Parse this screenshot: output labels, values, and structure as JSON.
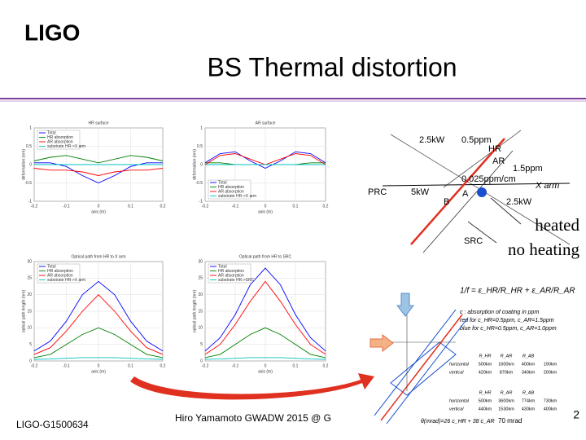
{
  "chart_data": [
    {
      "type": "line",
      "title": "HR surface",
      "xlabel": "axis (m)",
      "ylabel": "deformation (nm)",
      "x": [
        -0.2,
        -0.15,
        -0.1,
        -0.05,
        0,
        0.05,
        0.1,
        0.15,
        0.2
      ],
      "xlim": [
        -0.2,
        0.2
      ],
      "xticks": [
        -0.2,
        -0.1,
        0,
        0.1,
        0.2
      ],
      "ylim": [
        -1,
        1
      ],
      "yticks": [
        -1,
        -0.5,
        0,
        0.5,
        1
      ],
      "grid": true,
      "legend": "top-left",
      "series": [
        {
          "name": "Total",
          "color": "#0000ff",
          "values": [
            0.05,
            0.05,
            -0.05,
            -0.3,
            -0.5,
            -0.3,
            -0.05,
            0.05,
            0.05
          ]
        },
        {
          "name": "HR absorption",
          "color": "#008000",
          "values": [
            0.1,
            0.2,
            0.25,
            0.15,
            0.05,
            0.15,
            0.25,
            0.2,
            0.1
          ]
        },
        {
          "name": "AR absorption",
          "color": "#ff0000",
          "values": [
            -0.1,
            -0.15,
            -0.15,
            -0.2,
            -0.3,
            -0.2,
            -0.15,
            -0.15,
            -0.1
          ]
        },
        {
          "name": "substrate HR->X arm",
          "color": "#00bfbf",
          "values": [
            0,
            0,
            0,
            0,
            0,
            0,
            0,
            0,
            0
          ]
        }
      ]
    },
    {
      "type": "line",
      "title": "AR surface",
      "xlabel": "axis (m)",
      "ylabel": "deformation (nm)",
      "x": [
        -0.2,
        -0.15,
        -0.1,
        -0.05,
        0,
        0.05,
        0.1,
        0.15,
        0.2
      ],
      "xlim": [
        -0.2,
        0.2
      ],
      "xticks": [
        -0.2,
        -0.1,
        0,
        0.1,
        0.2
      ],
      "ylim": [
        -1,
        1
      ],
      "yticks": [
        -1,
        -0.5,
        0,
        0.5,
        1
      ],
      "grid": true,
      "legend": "bottom-left",
      "series": [
        {
          "name": "Total",
          "color": "#0000ff",
          "values": [
            0.05,
            0.3,
            0.35,
            0.1,
            -0.1,
            0.1,
            0.35,
            0.3,
            0.05
          ]
        },
        {
          "name": "HR absorption",
          "color": "#008000",
          "values": [
            0.05,
            0.05,
            0,
            0,
            0,
            0,
            0,
            0.05,
            0.05
          ]
        },
        {
          "name": "AR absorption",
          "color": "#ff0000",
          "values": [
            0,
            0.25,
            0.3,
            0.15,
            0,
            0.15,
            0.3,
            0.25,
            0
          ]
        },
        {
          "name": "substrate HR->X arm",
          "color": "#00bfbf",
          "values": [
            0,
            0,
            0,
            0,
            0,
            0,
            0,
            0,
            0
          ]
        }
      ]
    },
    {
      "type": "line",
      "title": "Optical path from HR to X arm",
      "xlabel": "axis (m)",
      "ylabel": "optical path length (nm)",
      "x": [
        -0.2,
        -0.15,
        -0.1,
        -0.05,
        0,
        0.05,
        0.1,
        0.15,
        0.2
      ],
      "xlim": [
        -0.2,
        0.2
      ],
      "xticks": [
        -0.2,
        -0.1,
        0,
        0.1,
        0.2
      ],
      "ylim": [
        0,
        30
      ],
      "yticks": [
        0,
        5,
        10,
        15,
        20,
        25,
        30
      ],
      "grid": true,
      "legend": "top-left",
      "series": [
        {
          "name": "Total",
          "color": "#0000ff",
          "values": [
            3,
            6,
            12,
            20,
            24,
            20,
            12,
            6,
            3
          ]
        },
        {
          "name": "HR absorption",
          "color": "#008000",
          "values": [
            1,
            2,
            5,
            8,
            10,
            8,
            5,
            2,
            1
          ]
        },
        {
          "name": "AR absorption",
          "color": "#ff0000",
          "values": [
            2,
            4,
            9,
            15,
            20,
            15,
            9,
            4,
            2
          ]
        },
        {
          "name": "substrate HR->X arm",
          "color": "#00bfbf",
          "values": [
            0.5,
            0.6,
            0.8,
            1,
            1,
            1,
            0.8,
            0.6,
            0.5
          ]
        }
      ]
    },
    {
      "type": "line",
      "title": "Optical path from HR to SRC",
      "xlabel": "axis (m)",
      "ylabel": "optical path length (nm)",
      "x": [
        -0.2,
        -0.15,
        -0.1,
        -0.05,
        0,
        0.05,
        0.1,
        0.15,
        0.2
      ],
      "xlim": [
        -0.2,
        0.2
      ],
      "xticks": [
        -0.2,
        -0.1,
        0,
        0.1,
        0.2
      ],
      "ylim": [
        0,
        30
      ],
      "yticks": [
        0,
        5,
        10,
        15,
        20,
        25,
        30
      ],
      "grid": true,
      "legend": "top-left",
      "series": [
        {
          "name": "Total",
          "color": "#0000ff",
          "values": [
            3,
            7,
            14,
            23,
            28,
            23,
            14,
            7,
            3
          ]
        },
        {
          "name": "HR absorption",
          "color": "#008000",
          "values": [
            1,
            2,
            5,
            8,
            10,
            8,
            5,
            2,
            1
          ]
        },
        {
          "name": "AR absorption",
          "color": "#ff0000",
          "values": [
            2,
            5,
            11,
            18,
            24,
            18,
            11,
            5,
            2
          ]
        },
        {
          "name": "substrate HR->SRC",
          "color": "#00bfbf",
          "values": [
            0.5,
            0.6,
            0.8,
            1,
            1,
            1,
            0.8,
            0.6,
            0.5
          ]
        }
      ]
    }
  ],
  "slide": {
    "logo": "LIGO",
    "title": "BS Thermal distortion",
    "diagram": {
      "power_in": "2.5kW",
      "c_hr": "0.5ppm",
      "hr": "HR",
      "ar": "AR",
      "c_ar": "1.5ppm",
      "c_sub": "0.025ppm/cm",
      "xarm": "X arm",
      "prc": "PRC",
      "power_prc": "5kW",
      "b": "B",
      "a": "A",
      "power_out": "2.5kW",
      "src": "SRC"
    },
    "heated": "heated",
    "no_heating": "no heating",
    "formula": "1/f = ε_HR/R_HR + ε_AR/R_AR",
    "notes": [
      "c : absorption of coating in ppm",
      "red for c_HR=0.5ppm, c_AR=1.5ppm",
      "blue for c_HR=0.5ppm, c_AR=1.0ppm"
    ],
    "table1": {
      "header": [
        "R_HR",
        "R_AR",
        "R_AB"
      ],
      "rows": [
        [
          "horizontal",
          "500km",
          "1600km",
          "400km",
          "190km"
        ],
        [
          "vertical",
          "420km",
          "870km",
          "340km",
          "200km"
        ]
      ]
    },
    "table2": {
      "header": [
        "R_HR",
        "R_AR",
        "R_AB"
      ],
      "rows": [
        [
          "horizontal",
          "500km",
          "3600km",
          "774km",
          "730km"
        ],
        [
          "vertical",
          "440km",
          "1530km",
          "430km",
          "400km"
        ]
      ]
    },
    "angle": "θ(mrad)=26 c_HR + 38 c_AR",
    "angle_value": "70 mrad",
    "doc_id": "LIGO-G1500634",
    "author": "Hiro Yamamoto   GWADW 2015 @ G",
    "page": "2"
  }
}
